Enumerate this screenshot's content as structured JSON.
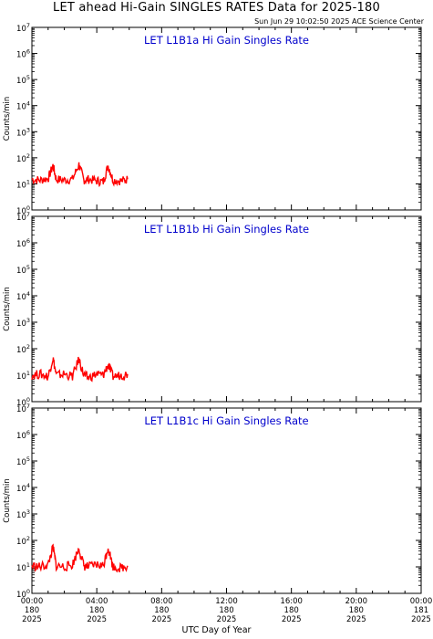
{
  "title": "LET ahead Hi-Gain SINGLES RATES Data for 2025-180",
  "timestamp": "Sun Jun 29 10:02:50 2025 ACE Science Center",
  "x_axis_label": "UTC Day of Year",
  "y_axis_label": "Counts/min",
  "colors": {
    "data": "#ff0000",
    "panel_title": "#0000cc",
    "axes": "#000000"
  },
  "chart_data": [
    {
      "type": "line",
      "title": "LET L1B1a Hi Gain Singles Rate",
      "ylabel": "Counts/min",
      "yscale": "log",
      "ylim": [
        1,
        10000000
      ],
      "y_ticks": [
        "10^0",
        "10^1",
        "10^2",
        "10^3",
        "10^4",
        "10^5",
        "10^6",
        "10^7"
      ],
      "xlim": [
        "2025-180 00:00",
        "2025-181 00:00"
      ],
      "series": [
        {
          "color": "#ff0000",
          "x_hours": [
            0.0,
            0.5,
            1.0,
            1.3,
            1.5,
            2.0,
            2.5,
            2.9,
            3.2,
            3.5,
            4.0,
            4.4,
            4.7,
            5.0,
            5.5,
            5.9
          ],
          "values": [
            15,
            14,
            16,
            50,
            15,
            14,
            15,
            55,
            14,
            15,
            13,
            12,
            50,
            14,
            13,
            15
          ]
        }
      ]
    },
    {
      "type": "line",
      "title": "LET L1B1b Hi Gain Singles Rate",
      "ylabel": "Counts/min",
      "yscale": "log",
      "ylim": [
        1,
        10000000
      ],
      "y_ticks": [
        "10^0",
        "10^1",
        "10^2",
        "10^3",
        "10^4",
        "10^5",
        "10^6",
        "10^7"
      ],
      "xlim": [
        "2025-180 00:00",
        "2025-181 00:00"
      ],
      "series": [
        {
          "color": "#ff0000",
          "x_hours": [
            0.0,
            0.5,
            1.0,
            1.3,
            1.5,
            2.0,
            2.5,
            2.9,
            3.2,
            3.5,
            4.0,
            4.4,
            4.7,
            5.0,
            5.5,
            5.9
          ],
          "values": [
            10,
            11,
            9,
            45,
            10,
            11,
            9,
            40,
            10,
            8,
            11,
            10,
            25,
            9,
            10,
            11
          ]
        }
      ]
    },
    {
      "type": "line",
      "title": "LET L1B1c Hi Gain Singles Rate",
      "ylabel": "Counts/min",
      "yscale": "log",
      "ylim": [
        1,
        10000000
      ],
      "y_ticks": [
        "10^0",
        "10^1",
        "10^2",
        "10^3",
        "10^4",
        "10^5",
        "10^6",
        "10^7"
      ],
      "xlim": [
        "2025-180 00:00",
        "2025-181 00:00"
      ],
      "series": [
        {
          "color": "#ff0000",
          "x_hours": [
            0.0,
            0.5,
            1.0,
            1.3,
            1.5,
            2.0,
            2.5,
            2.9,
            3.2,
            3.5,
            4.0,
            4.4,
            4.7,
            5.0,
            5.5,
            5.9
          ],
          "values": [
            11,
            10,
            12,
            55,
            11,
            10,
            12,
            50,
            11,
            10,
            12,
            11,
            55,
            10,
            9,
            11
          ]
        }
      ]
    }
  ],
  "x_ticks": [
    {
      "time": "00:00",
      "day": "180",
      "year": "2025"
    },
    {
      "time": "04:00",
      "day": "180",
      "year": "2025"
    },
    {
      "time": "08:00",
      "day": "180",
      "year": "2025"
    },
    {
      "time": "12:00",
      "day": "180",
      "year": "2025"
    },
    {
      "time": "16:00",
      "day": "180",
      "year": "2025"
    },
    {
      "time": "20:00",
      "day": "180",
      "year": "2025"
    },
    {
      "time": "00:00",
      "day": "181",
      "year": "2025"
    }
  ]
}
